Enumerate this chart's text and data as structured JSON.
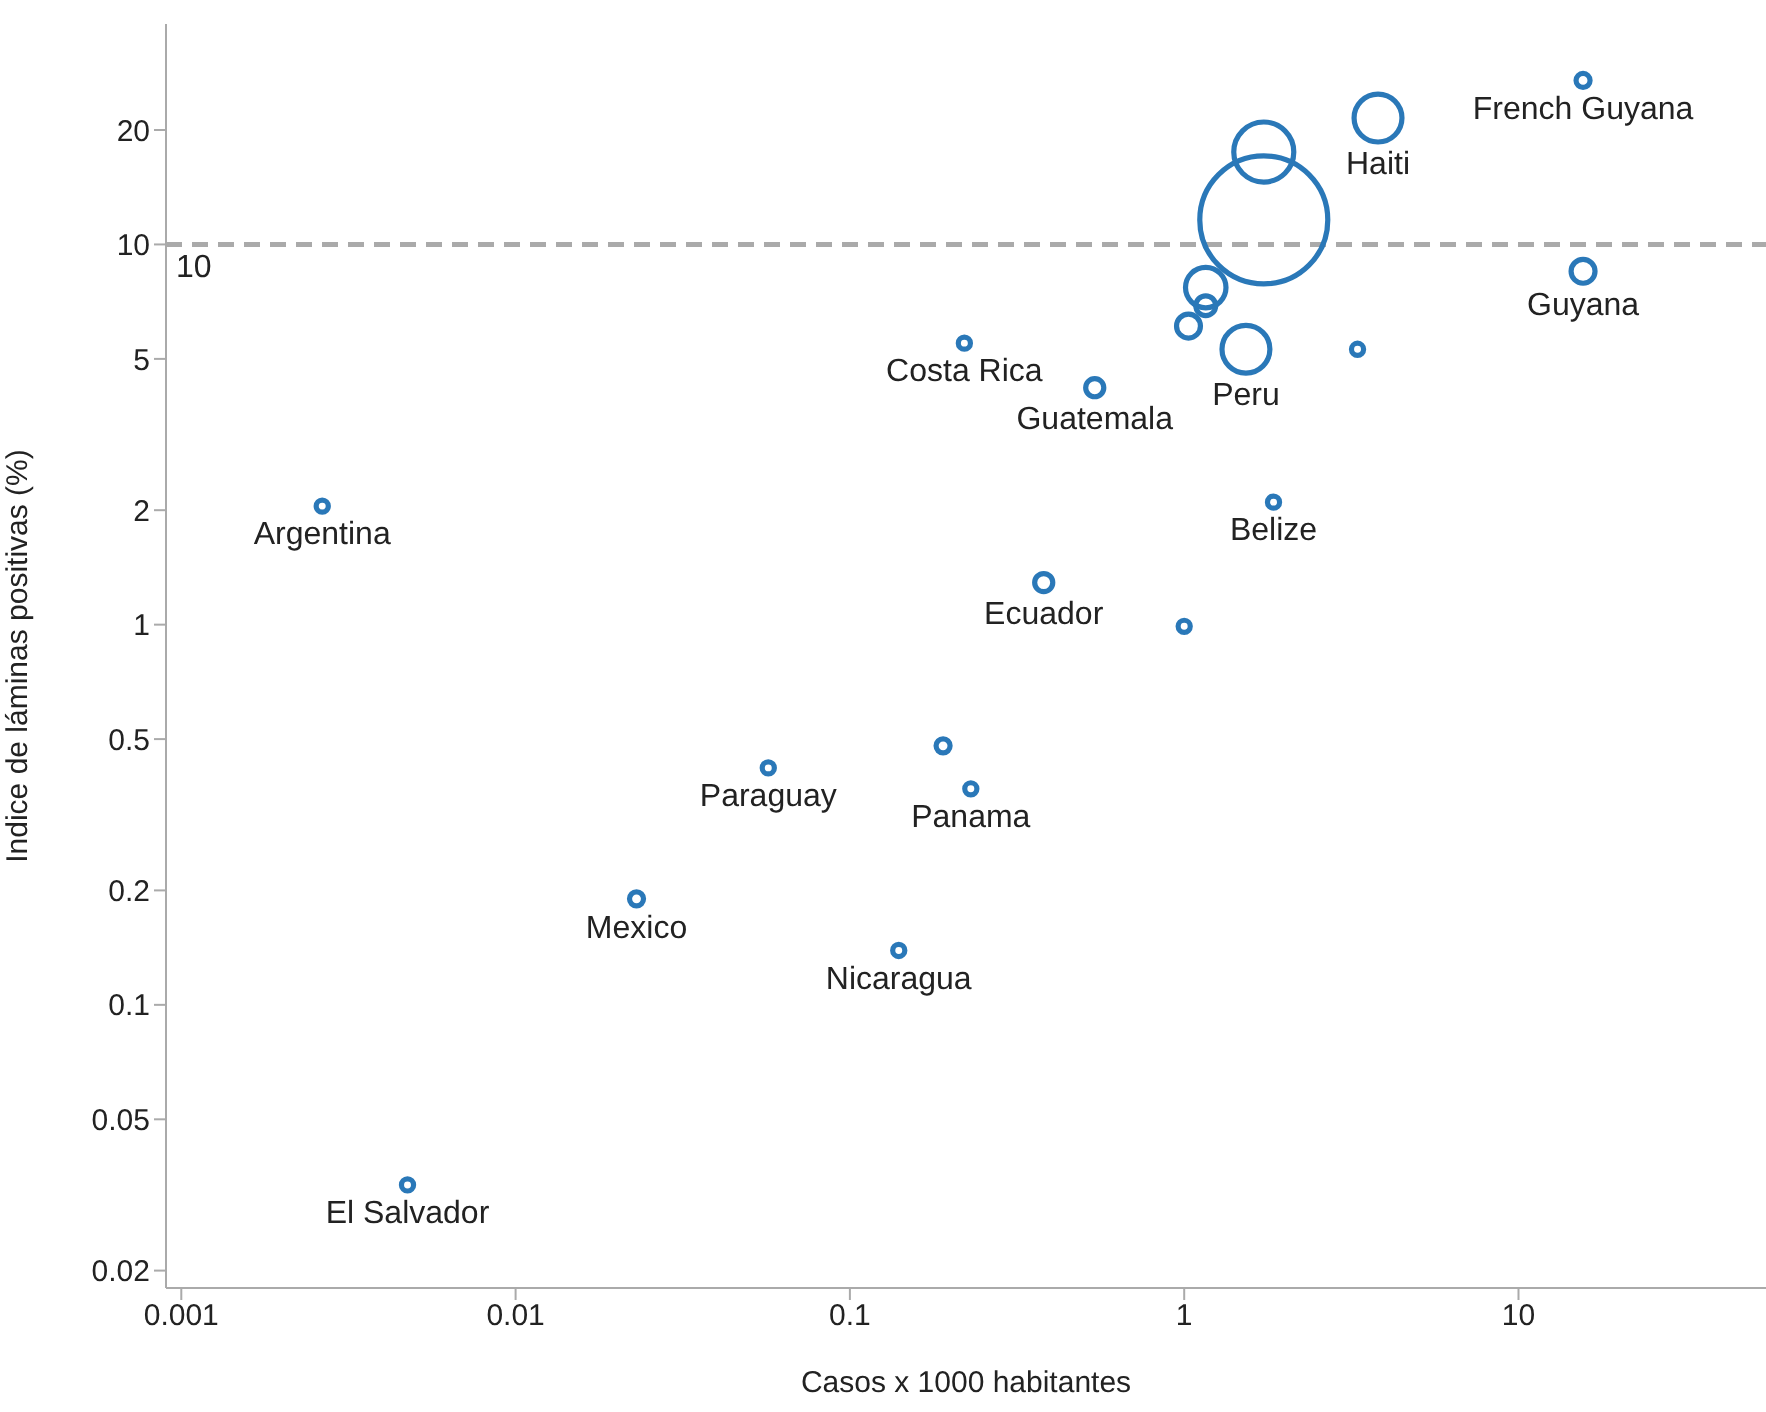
{
  "chart_data": {
    "type": "bubble",
    "xlabel": "Casos x 1000 habitantes",
    "ylabel": "Indice de láminas positivas (%)",
    "log": "xy",
    "xlim": [
      0.0009,
      55
    ],
    "xticks": [
      0.001,
      0.01,
      0.1,
      1,
      10
    ],
    "ylim": [
      0.018,
      38
    ],
    "yticks": [
      0.02,
      0.05,
      0.1,
      0.2,
      0.5,
      1,
      2,
      5,
      10,
      20
    ],
    "grid": false,
    "legend": false,
    "ref_lines": [
      {
        "axis": "y",
        "value": 10,
        "label": "10",
        "color": "#aaaaaa",
        "line_style": "dashed"
      }
    ],
    "series": [
      {
        "color": "#2a78b8",
        "x": [
          15.6,
          3.8,
          1.73,
          1.73,
          15.6,
          1.16,
          1.16,
          1.03,
          1.53,
          3.3,
          0.22,
          0.54,
          0.00264,
          1.85,
          0.38,
          1.0,
          0.057,
          0.19,
          0.23,
          0.023,
          0.14,
          0.00475
        ],
        "values": [
          27,
          21.5,
          11.6,
          17.5,
          8.5,
          7.7,
          6.9,
          6.1,
          5.3,
          5.3,
          5.5,
          4.2,
          2.05,
          2.1,
          1.29,
          0.99,
          0.42,
          0.48,
          0.37,
          0.19,
          0.139,
          0.0336
        ],
        "sizes": [
          0.012,
          0.14,
          1,
          0.22,
          0.035,
          0.1,
          0.024,
          0.035,
          0.14,
          0.009,
          0.009,
          0.02,
          0.009,
          0.009,
          0.02,
          0.009,
          0.009,
          0.012,
          0.009,
          0.012,
          0.009,
          0.009
        ],
        "value_labels": [
          "French Guyana",
          "Haiti",
          null,
          null,
          "Guyana",
          null,
          null,
          null,
          "Peru",
          null,
          "Costa Rica",
          "Guatemala",
          "Argentina",
          "Belize",
          "Ecuador",
          null,
          "Paraguay",
          null,
          "Panama",
          "Mexico",
          "Nicaragua",
          "El Salvador"
        ]
      }
    ]
  }
}
